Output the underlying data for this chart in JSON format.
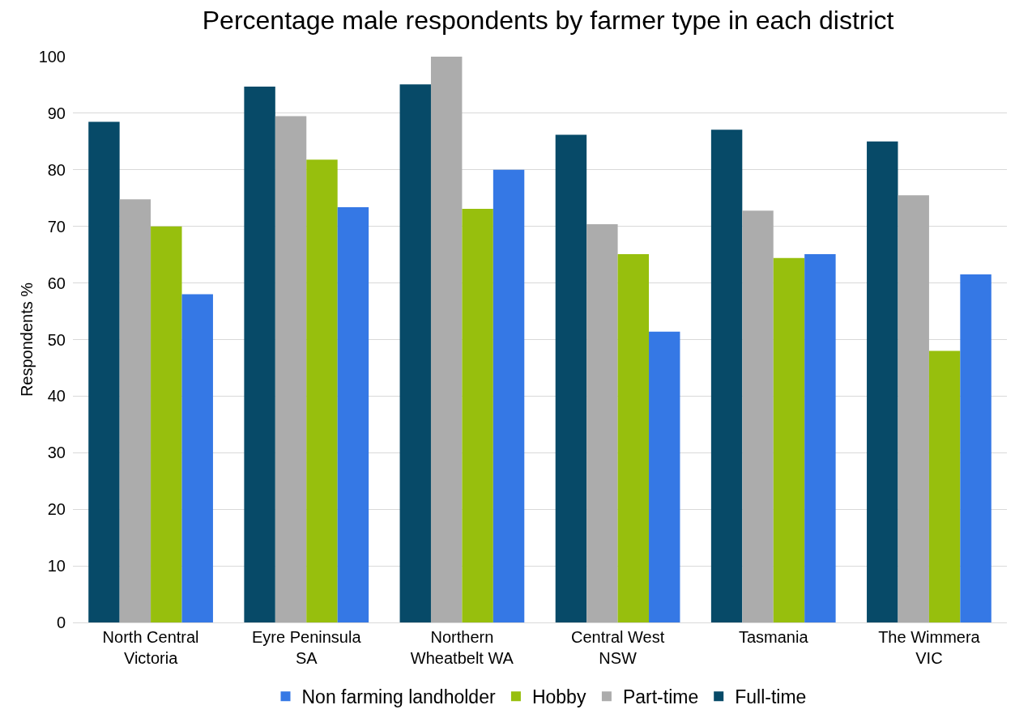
{
  "chart_data": {
    "type": "bar",
    "title": "Percentage male respondents by farmer type in each district",
    "ylabel": "Respondents %",
    "categories": [
      "North Central\nVictoria",
      "Eyre Peninsula\nSA",
      "Northern\nWheatbelt WA",
      "Central West\nNSW",
      "Tasmania",
      "The Wimmera\nVIC"
    ],
    "series": [
      {
        "name": "Full-time",
        "color": "#074a68",
        "values": [
          88.5,
          94.7,
          95.1,
          86.2,
          87.1,
          85.0
        ]
      },
      {
        "name": "Part-time",
        "color": "#acacac",
        "values": [
          74.8,
          89.5,
          100,
          70.4,
          72.8,
          75.5
        ]
      },
      {
        "name": "Hobby",
        "color": "#97bf0d",
        "values": [
          70.0,
          81.8,
          73.1,
          65.1,
          64.4,
          48.0
        ]
      },
      {
        "name": "Non farming landholder",
        "color": "#3578e5",
        "values": [
          58.0,
          73.4,
          80.0,
          51.4,
          65.1,
          61.5
        ]
      }
    ],
    "ylim": [
      0,
      100
    ],
    "yticks": [
      0,
      10,
      20,
      30,
      40,
      50,
      60,
      70,
      80,
      90,
      100
    ],
    "grid": "y",
    "legend": "bottom"
  }
}
